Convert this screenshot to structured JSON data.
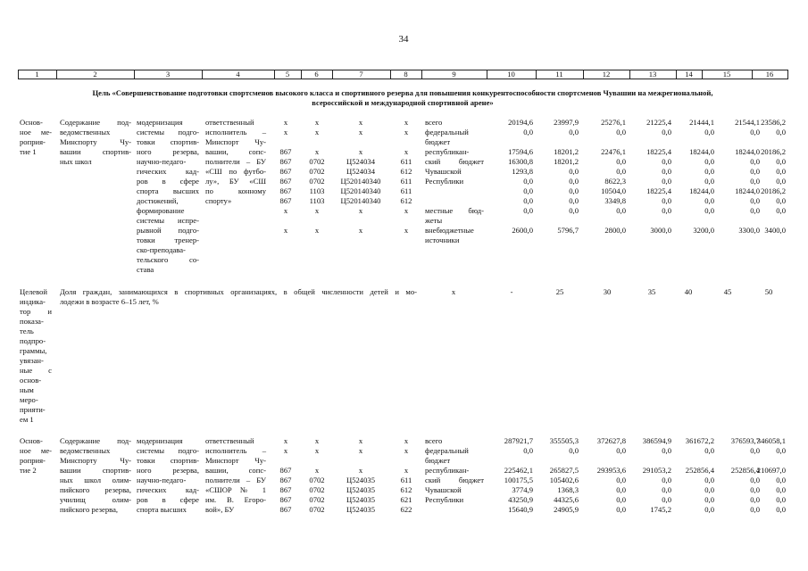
{
  "page_number": "34",
  "header": [
    "1",
    "2",
    "3",
    "4",
    "5",
    "6",
    "7",
    "8",
    "9",
    "10",
    "11",
    "12",
    "13",
    "14",
    "15",
    "16"
  ],
  "goal": [
    "Цель «Совершенствование подготовки спортсменов высокого класса и спортивного резерва для повышения конкурентоспособности спортсменов Чувашии на межрегиональной,",
    "всероссийской и международной спортивной арене»"
  ],
  "blocks": [
    {
      "c1": [
        "Основ-",
        "ное ме-",
        "роприя-",
        "тие 1"
      ],
      "c2": [
        "Содержание под-",
        "ведомственных",
        "Минспорту Чу-",
        "вашии спортив-",
        "ных школ"
      ],
      "c3": [
        "модернизация",
        "системы подго-",
        "товки спортив-",
        "ного резерва,",
        "научно-педаго-",
        "гических кад-",
        "ров в сфере",
        "спорта высших",
        "достижений,",
        "формирование",
        "системы испре-",
        "рывной подго-",
        "товки тренер-",
        "ско-преподава-",
        "тельского со-",
        "става"
      ],
      "c4": [
        "ответственный",
        "исполнитель –",
        "Минспорт Чу-",
        "вашии, сопс-",
        "полнители – БУ",
        "«СШ по футбо-",
        "лу», БУ «СШ",
        "по конному",
        "спорту»"
      ],
      "rows": [
        [
          "x",
          "x",
          "x",
          "x",
          "всего",
          "20194,6",
          "23997,9",
          "25276,1",
          "21225,4",
          "21444,1",
          "21544,1",
          "23586,2"
        ],
        [
          "x",
          "x",
          "x",
          "x",
          "федеральный",
          "0,0",
          "0,0",
          "0,0",
          "0,0",
          "0,0",
          "0,0",
          "0,0"
        ],
        [
          null,
          null,
          null,
          null,
          "бюджет",
          null,
          null,
          null,
          null,
          null,
          null,
          null
        ],
        [
          "867",
          "x",
          "x",
          "x",
          "республикан-",
          "17594,6",
          "18201,2",
          "22476,1",
          "18225,4",
          "18244,0",
          "18244,0",
          "20186,2"
        ],
        [
          "867",
          "0702",
          "Ц524034",
          "611",
          "ский бюджет",
          "16300,8",
          "18201,2",
          "0,0",
          "0,0",
          "0,0",
          "0,0",
          "0,0"
        ],
        [
          "867",
          "0702",
          "Ц524034",
          "612",
          "Чувашской",
          "1293,8",
          "0,0",
          "0,0",
          "0,0",
          "0,0",
          "0,0",
          "0,0"
        ],
        [
          "867",
          "0702",
          "Ц520140340",
          "611",
          "Республики",
          "0,0",
          "0,0",
          "8622,3",
          "0,0",
          "0,0",
          "0,0",
          "0,0"
        ],
        [
          "867",
          "1103",
          "Ц520140340",
          "611",
          null,
          "0,0",
          "0,0",
          "10504,0",
          "18225,4",
          "18244,0",
          "18244,0",
          "20186,2"
        ],
        [
          "867",
          "1103",
          "Ц520140340",
          "612",
          null,
          "0,0",
          "0,0",
          "3349,8",
          "0,0",
          "0,0",
          "0,0",
          "0,0"
        ],
        [
          "x",
          "x",
          "x",
          "x",
          "местные бюд-",
          "0,0",
          "0,0",
          "0,0",
          "0,0",
          "0,0",
          "0,0",
          "0,0"
        ],
        [
          null,
          null,
          null,
          null,
          "жеты",
          null,
          null,
          null,
          null,
          null,
          null,
          null
        ],
        [
          "x",
          "x",
          "x",
          "x",
          "внебюджетные",
          "2600,0",
          "5796,7",
          "2800,0",
          "3000,0",
          "3200,0",
          "3300,0",
          "3400,0"
        ],
        [
          null,
          null,
          null,
          null,
          "источники",
          null,
          null,
          null,
          null,
          null,
          null,
          null
        ]
      ]
    },
    {
      "c1": [
        "Целевой",
        "индика-",
        "тор и",
        "показа-",
        "тель",
        "подпро-",
        "граммы,",
        "увязан-",
        "ные с",
        "основ-",
        "ным",
        "меро-",
        "прияти-",
        "ем 1"
      ],
      "text": [
        "Доля граждан, занимающихся в спортивных организациях, в общей численности детей и мо-",
        "лодежи в возрасте 6–15 лет, %"
      ],
      "c9": "x",
      "values": [
        "-",
        "25",
        "30",
        "35",
        "40",
        "45",
        "50"
      ]
    },
    {
      "c1": [
        "Основ-",
        "ное ме-",
        "роприя-",
        "тие 2"
      ],
      "c2": [
        "Содержание под-",
        "ведомственных",
        "Минспорту Чу-",
        "вашии спортив-",
        "ных школ олим-",
        "пийского резерва,",
        "училищ олим-",
        "пийского резерва,"
      ],
      "c3": [
        "модернизация",
        "системы подго-",
        "товки спортив-",
        "ного резерва,",
        "научно-педаго-",
        "гических кад-",
        "ров в сфере",
        "спорта высших"
      ],
      "c4": [
        "ответственный",
        "исполнитель –",
        "Минспорт Чу-",
        "вашии, сопс-",
        "полнители – БУ",
        "«СШОР № 1",
        "им. В. Егоро-",
        "вой», БУ"
      ],
      "rows": [
        [
          "x",
          "x",
          "x",
          "x",
          "всего",
          "287921,7",
          "355505,3",
          "372627,8",
          "386594,9",
          "361672,2",
          "376593,7",
          "346058,1"
        ],
        [
          "x",
          "x",
          "x",
          "x",
          "федеральный",
          "0,0",
          "0,0",
          "0,0",
          "0,0",
          "0,0",
          "0,0",
          "0,0"
        ],
        [
          null,
          null,
          null,
          null,
          "бюджет",
          null,
          null,
          null,
          null,
          null,
          null,
          null
        ],
        [
          "867",
          "x",
          "x",
          "x",
          "республикан-",
          "225462,1",
          "265827,5",
          "293953,6",
          "291053,2",
          "252856,4",
          "252856,4",
          "210697,0"
        ],
        [
          "867",
          "0702",
          "Ц524035",
          "611",
          "ский бюджет",
          "100175,5",
          "105402,6",
          "0,0",
          "0,0",
          "0,0",
          "0,0",
          "0,0"
        ],
        [
          "867",
          "0702",
          "Ц524035",
          "612",
          "Чувашской",
          "3774,9",
          "1368,3",
          "0,0",
          "0,0",
          "0,0",
          "0,0",
          "0,0"
        ],
        [
          "867",
          "0702",
          "Ц524035",
          "621",
          "Республики",
          "43250,9",
          "44325,6",
          "0,0",
          "0,0",
          "0,0",
          "0,0",
          "0,0"
        ],
        [
          "867",
          "0702",
          "Ц524035",
          "622",
          null,
          "15640,9",
          "24905,9",
          "0,0",
          "1745,2",
          "0,0",
          "0,0",
          "0,0"
        ]
      ]
    }
  ]
}
